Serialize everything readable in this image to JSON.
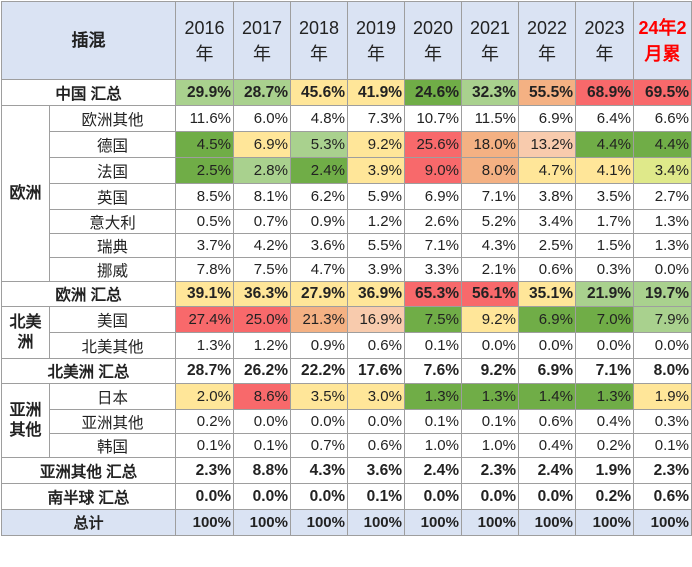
{
  "corner": "插混",
  "years": [
    {
      "line1": "2016",
      "line2": "年",
      "red": false
    },
    {
      "line1": "2017",
      "line2": "年",
      "red": false
    },
    {
      "line1": "2018",
      "line2": "年",
      "red": false
    },
    {
      "line1": "2019",
      "line2": "年",
      "red": false
    },
    {
      "line1": "2020",
      "line2": "年",
      "red": false
    },
    {
      "line1": "2021",
      "line2": "年",
      "red": false
    },
    {
      "line1": "2022",
      "line2": "年",
      "red": false
    },
    {
      "line1": "2023",
      "line2": "年",
      "red": false
    },
    {
      "line1": "24年2",
      "line2": "月累",
      "red": true
    }
  ],
  "rows": [
    {
      "kind": "sum",
      "label": "中国 汇总",
      "h": 26,
      "values": [
        "29.9%",
        "28.7%",
        "45.6%",
        "41.9%",
        "24.6%",
        "32.3%",
        "55.5%",
        "68.9%",
        "69.5%"
      ],
      "colors": [
        "#a9d18e",
        "#a9d18e",
        "#ffe699",
        "#ffe699",
        "#70ad47",
        "#a9d18e",
        "#f4b183",
        "#f8696b",
        "#f8696b"
      ]
    },
    {
      "kind": "sub",
      "region": "欧洲",
      "label": "欧洲其他",
      "h": 26,
      "values": [
        "11.6%",
        "6.0%",
        "4.8%",
        "7.3%",
        "10.7%",
        "11.5%",
        "6.9%",
        "6.4%",
        "6.6%"
      ],
      "colors": [
        "",
        "",
        "",
        "",
        "",
        "",
        "",
        "",
        ""
      ]
    },
    {
      "kind": "sub",
      "label": "德国",
      "h": 26,
      "values": [
        "4.5%",
        "6.9%",
        "5.3%",
        "9.2%",
        "25.6%",
        "18.0%",
        "13.2%",
        "4.4%",
        "4.4%"
      ],
      "colors": [
        "#70ad47",
        "#ffe699",
        "#a9d18e",
        "#ffe699",
        "#f8696b",
        "#f4b183",
        "#f8cbad",
        "#70ad47",
        "#70ad47"
      ]
    },
    {
      "kind": "sub",
      "label": "法国",
      "h": 26,
      "values": [
        "2.5%",
        "2.8%",
        "2.4%",
        "3.9%",
        "9.0%",
        "8.0%",
        "4.7%",
        "4.1%",
        "3.4%"
      ],
      "colors": [
        "#70ad47",
        "#a9d18e",
        "#70ad47",
        "#ffe699",
        "#f8696b",
        "#f4b183",
        "#ffe699",
        "#ffe699",
        "#dfe98a"
      ]
    },
    {
      "kind": "sub",
      "label": "英国",
      "h": 26,
      "values": [
        "8.5%",
        "8.1%",
        "6.2%",
        "5.9%",
        "6.9%",
        "7.1%",
        "3.8%",
        "3.5%",
        "2.7%"
      ],
      "colors": [
        "",
        "",
        "",
        "",
        "",
        "",
        "",
        "",
        ""
      ]
    },
    {
      "kind": "sub",
      "label": "意大利",
      "h": 24,
      "values": [
        "0.5%",
        "0.7%",
        "0.9%",
        "1.2%",
        "2.6%",
        "5.2%",
        "3.4%",
        "1.7%",
        "1.3%"
      ],
      "colors": [
        "",
        "",
        "",
        "",
        "",
        "",
        "",
        "",
        ""
      ]
    },
    {
      "kind": "sub",
      "label": "瑞典",
      "h": 24,
      "values": [
        "3.7%",
        "4.2%",
        "3.6%",
        "5.5%",
        "7.1%",
        "4.3%",
        "2.5%",
        "1.5%",
        "1.3%"
      ],
      "colors": [
        "",
        "",
        "",
        "",
        "",
        "",
        "",
        "",
        ""
      ]
    },
    {
      "kind": "sub",
      "label": "挪威",
      "h": 24,
      "values": [
        "7.8%",
        "7.5%",
        "4.7%",
        "3.9%",
        "3.3%",
        "2.1%",
        "0.6%",
        "0.3%",
        "0.0%"
      ],
      "colors": [
        "",
        "",
        "",
        "",
        "",
        "",
        "",
        "",
        ""
      ]
    },
    {
      "kind": "sum",
      "label": "欧洲 汇总",
      "h": 25,
      "values": [
        "39.1%",
        "36.3%",
        "27.9%",
        "36.9%",
        "65.3%",
        "56.1%",
        "35.1%",
        "21.9%",
        "19.7%"
      ],
      "colors": [
        "#ffe699",
        "#ffe699",
        "#ffe699",
        "#ffe699",
        "#f8696b",
        "#f8696b",
        "#ffe699",
        "#a9d18e",
        "#a9d18e"
      ]
    },
    {
      "kind": "sub",
      "region": "北美洲",
      "label": "美国",
      "h": 26,
      "values": [
        "27.4%",
        "25.0%",
        "21.3%",
        "16.9%",
        "7.5%",
        "9.2%",
        "6.9%",
        "7.0%",
        "7.9%"
      ],
      "colors": [
        "#f8696b",
        "#f8696b",
        "#f4b183",
        "#f8cbad",
        "#70ad47",
        "#ffe699",
        "#70ad47",
        "#70ad47",
        "#a9d18e"
      ]
    },
    {
      "kind": "sub",
      "label": "北美其他",
      "h": 26,
      "values": [
        "1.3%",
        "1.2%",
        "0.9%",
        "0.6%",
        "0.1%",
        "0.0%",
        "0.0%",
        "0.0%",
        "0.0%"
      ],
      "colors": [
        "",
        "",
        "",
        "",
        "",
        "",
        "",
        "",
        ""
      ]
    },
    {
      "kind": "sum",
      "label": "北美洲 汇总",
      "h": 25,
      "values": [
        "28.7%",
        "26.2%",
        "22.2%",
        "17.6%",
        "7.6%",
        "9.2%",
        "6.9%",
        "7.1%",
        "8.0%"
      ],
      "colors": [
        "",
        "",
        "",
        "",
        "",
        "",
        "",
        "",
        ""
      ]
    },
    {
      "kind": "sub",
      "region": "亚洲其他",
      "label": "日本",
      "h": 26,
      "values": [
        "2.0%",
        "8.6%",
        "3.5%",
        "3.0%",
        "1.3%",
        "1.3%",
        "1.4%",
        "1.3%",
        "1.9%"
      ],
      "colors": [
        "#ffe699",
        "#f8696b",
        "#ffe699",
        "#ffe699",
        "#70ad47",
        "#70ad47",
        "#70ad47",
        "#70ad47",
        "#ffe699"
      ]
    },
    {
      "kind": "sub",
      "label": "亚洲其他",
      "h": 24,
      "values": [
        "0.2%",
        "0.0%",
        "0.0%",
        "0.0%",
        "0.1%",
        "0.1%",
        "0.6%",
        "0.4%",
        "0.3%"
      ],
      "colors": [
        "",
        "",
        "",
        "",
        "",
        "",
        "",
        "",
        ""
      ]
    },
    {
      "kind": "sub",
      "label": "韩国",
      "h": 24,
      "values": [
        "0.1%",
        "0.1%",
        "0.7%",
        "0.6%",
        "1.0%",
        "1.0%",
        "0.4%",
        "0.2%",
        "0.1%"
      ],
      "colors": [
        "",
        "",
        "",
        "",
        "",
        "",
        "",
        "",
        ""
      ]
    },
    {
      "kind": "sum",
      "label": "亚洲其他 汇总",
      "h": 26,
      "values": [
        "2.3%",
        "8.8%",
        "4.3%",
        "3.6%",
        "2.4%",
        "2.3%",
        "2.4%",
        "1.9%",
        "2.3%"
      ],
      "colors": [
        "",
        "",
        "",
        "",
        "",
        "",
        "",
        "",
        ""
      ]
    },
    {
      "kind": "sum",
      "label": "南半球 汇总",
      "h": 26,
      "values": [
        "0.0%",
        "0.0%",
        "0.0%",
        "0.1%",
        "0.0%",
        "0.0%",
        "0.0%",
        "0.2%",
        "0.6%"
      ],
      "colors": [
        "",
        "",
        "",
        "",
        "",
        "",
        "",
        "",
        ""
      ]
    },
    {
      "kind": "total",
      "label": "总计",
      "h": 26,
      "values": [
        "100%",
        "100%",
        "100%",
        "100%",
        "100%",
        "100%",
        "100%",
        "100%",
        "100%"
      ],
      "colors": [
        "",
        "",
        "",
        "",
        "",
        "",
        "",
        "",
        ""
      ]
    }
  ]
}
